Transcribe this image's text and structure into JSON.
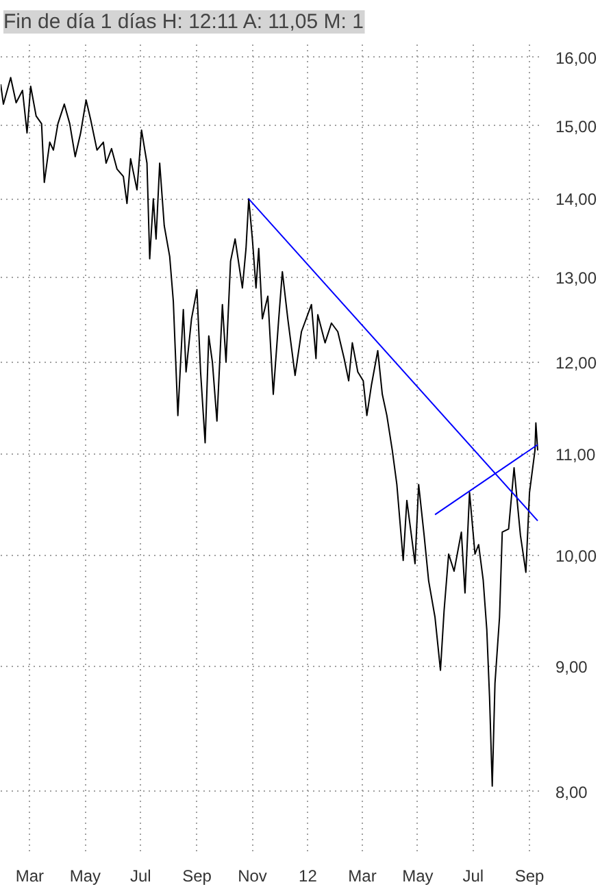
{
  "chart_data": {
    "type": "line",
    "title": "Fin de día 1 días H: 12:11 A: 11,05 M: 1",
    "x": [
      "2011-01-28",
      "2011-01-31",
      "2011-02-08",
      "2011-02-14",
      "2011-02-21",
      "2011-02-26",
      "2011-03-02",
      "2011-03-08",
      "2011-03-14",
      "2011-03-17",
      "2011-03-23",
      "2011-03-27",
      "2011-04-01",
      "2011-04-08",
      "2011-04-14",
      "2011-04-20",
      "2011-04-26",
      "2011-05-02",
      "2011-05-07",
      "2011-05-14",
      "2011-05-21",
      "2011-05-24",
      "2011-05-30",
      "2011-06-05",
      "2011-06-12",
      "2011-06-16",
      "2011-06-20",
      "2011-06-27",
      "2011-07-02",
      "2011-07-08",
      "2011-07-11",
      "2011-07-15",
      "2011-07-18",
      "2011-07-22",
      "2011-07-27",
      "2011-08-02",
      "2011-08-06",
      "2011-08-11",
      "2011-08-17",
      "2011-08-20",
      "2011-08-26",
      "2011-09-01",
      "2011-09-05",
      "2011-09-10",
      "2011-09-14",
      "2011-09-18",
      "2011-09-23",
      "2011-09-29",
      "2011-10-03",
      "2011-10-08",
      "2011-10-13",
      "2011-10-21",
      "2011-10-25",
      "2011-10-28",
      "2011-11-01",
      "2011-11-05",
      "2011-11-08",
      "2011-11-12",
      "2011-11-18",
      "2011-11-24",
      "2011-11-30",
      "2011-12-04",
      "2011-12-10",
      "2011-12-18",
      "2011-12-25",
      "2012-01-05",
      "2012-01-10",
      "2012-01-12",
      "2012-01-20",
      "2012-01-27",
      "2012-02-03",
      "2012-02-10",
      "2012-02-15",
      "2012-02-19",
      "2012-02-25",
      "2012-03-02",
      "2012-03-06",
      "2012-03-11",
      "2012-03-18",
      "2012-03-23",
      "2012-03-28",
      "2012-04-03",
      "2012-04-08",
      "2012-04-15",
      "2012-04-19",
      "2012-04-24",
      "2012-04-28",
      "2012-05-02",
      "2012-05-08",
      "2012-05-13",
      "2012-05-20",
      "2012-05-26",
      "2012-05-30",
      "2012-06-04",
      "2012-06-10",
      "2012-06-18",
      "2012-06-22",
      "2012-06-27",
      "2012-07-03",
      "2012-07-07",
      "2012-07-12",
      "2012-07-16",
      "2012-07-19",
      "2012-07-22",
      "2012-07-25",
      "2012-07-30",
      "2012-08-02",
      "2012-08-09",
      "2012-08-15",
      "2012-08-22",
      "2012-08-28",
      "2012-09-01",
      "2012-09-07",
      "2012-09-08",
      "2012-09-10"
    ],
    "series": [
      {
        "color": "#000000",
        "values": [
          15.6,
          15.31,
          15.7,
          15.33,
          15.51,
          14.9,
          15.57,
          15.14,
          15.03,
          14.22,
          14.77,
          14.66,
          15.03,
          15.31,
          15.03,
          14.57,
          14.9,
          15.37,
          15.09,
          14.66,
          14.77,
          14.48,
          14.68,
          14.4,
          14.3,
          13.94,
          14.54,
          14.12,
          14.94,
          14.48,
          13.23,
          14.0,
          13.48,
          14.48,
          13.65,
          13.26,
          12.71,
          11.41,
          12.61,
          11.89,
          12.5,
          12.85,
          11.89,
          11.12,
          12.3,
          12.0,
          11.35,
          12.67,
          12.0,
          13.2,
          13.48,
          12.87,
          13.36,
          14.0,
          13.48,
          12.87,
          13.36,
          12.5,
          12.77,
          11.64,
          12.5,
          13.07,
          12.5,
          11.85,
          12.35,
          12.67,
          12.04,
          12.55,
          12.22,
          12.45,
          12.35,
          12.04,
          11.79,
          12.22,
          11.89,
          11.79,
          11.41,
          11.74,
          12.13,
          11.64,
          11.41,
          11.04,
          10.69,
          9.95,
          10.53,
          10.19,
          9.92,
          10.69,
          10.19,
          9.76,
          9.43,
          8.97,
          9.49,
          10.01,
          9.85,
          10.22,
          9.65,
          10.61,
          10.01,
          10.1,
          9.77,
          9.32,
          8.75,
          8.04,
          8.86,
          9.43,
          10.22,
          10.25,
          10.86,
          10.19,
          9.84,
          10.61,
          11.04,
          11.33,
          11.04
        ]
      },
      {
        "type": "line",
        "color": "#0000ff",
        "x": [
          "2011-10-28",
          "2012-09-10"
        ],
        "values": [
          14.0,
          10.33
        ]
      },
      {
        "type": "line",
        "color": "#0000ff",
        "x": [
          "2012-05-20",
          "2012-09-10"
        ],
        "values": [
          10.39,
          11.1
        ]
      }
    ],
    "xlim": [
      "2011-01-28",
      "2012-09-13"
    ],
    "xticks": [
      {
        "value": "2011-03",
        "label": "Mar"
      },
      {
        "value": "2011-05",
        "label": "May"
      },
      {
        "value": "2011-07",
        "label": "Jul"
      },
      {
        "value": "2011-09",
        "label": "Sep"
      },
      {
        "value": "2011-11",
        "label": "Nov"
      },
      {
        "value": "2012-01",
        "label": "12"
      },
      {
        "value": "2012-03",
        "label": "Mar"
      },
      {
        "value": "2012-05",
        "label": "May"
      },
      {
        "value": "2012-07",
        "label": "Jul"
      },
      {
        "value": "2012-09",
        "label": "Sep"
      }
    ],
    "ylim": [
      7.56,
      16.26
    ],
    "yticks": [
      {
        "value": 8,
        "label": "8,00"
      },
      {
        "value": 9,
        "label": "9,00"
      },
      {
        "value": 10,
        "label": "10,00"
      },
      {
        "value": 11,
        "label": "11,00"
      },
      {
        "value": 12,
        "label": "12,00"
      },
      {
        "value": 13,
        "label": "13,00"
      },
      {
        "value": 14,
        "label": "14,00"
      },
      {
        "value": 15,
        "label": "15,00"
      },
      {
        "value": 16,
        "label": "16,00"
      }
    ],
    "log": true,
    "grid": true,
    "line_style": "solid"
  }
}
